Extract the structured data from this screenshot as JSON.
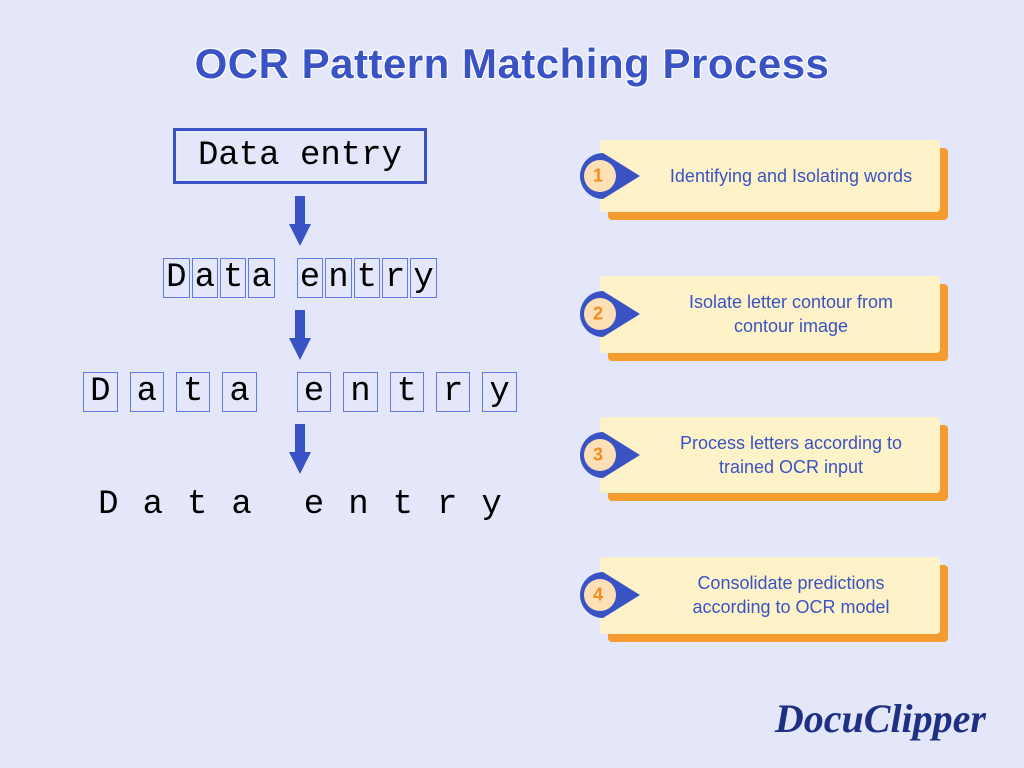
{
  "title": "OCR  Pattern Matching Process",
  "sample_text": "Data entry",
  "sample_chars": [
    "D",
    "a",
    "t",
    "a",
    " ",
    "e",
    "n",
    "t",
    "r",
    "y"
  ],
  "colors": {
    "background": "#e4e7fa",
    "title": "#3a53c4",
    "box_border": "#3a53c4",
    "char_border": "#607be4",
    "arrow": "#3a53c4",
    "step_bg": "#fdf2c8",
    "step_shadow": "#f49c2f",
    "step_text": "#3a53c4",
    "badge_ring": "#3a53c4",
    "badge_inner": "#fde0b6",
    "badge_num": "#f28c1d",
    "brand": "#1e2f84",
    "mono_text": "#000000"
  },
  "typography": {
    "title_fontsize": 42,
    "title_weight": 800,
    "mono_fontsize": 34,
    "mono_family": "Courier New",
    "step_fontsize": 18,
    "brand_fontsize": 40,
    "brand_family": "Brush Script MT"
  },
  "steps": [
    {
      "n": "1",
      "label": "Identifying and Isolating words"
    },
    {
      "n": "2",
      "label": "Isolate letter contour from contour image"
    },
    {
      "n": "3",
      "label": "Process letters according to trained OCR input"
    },
    {
      "n": "4",
      "label": "Consolidate predictions according to OCR model"
    }
  ],
  "brand": "DocuClipper",
  "diagram": {
    "type": "flowchart",
    "stages": 4,
    "arrow_color": "#3a53c4",
    "arrow_width": 10,
    "arrow_head": 20,
    "layout": "vertical-left + step-cards-right",
    "aspect": "1024x768"
  }
}
